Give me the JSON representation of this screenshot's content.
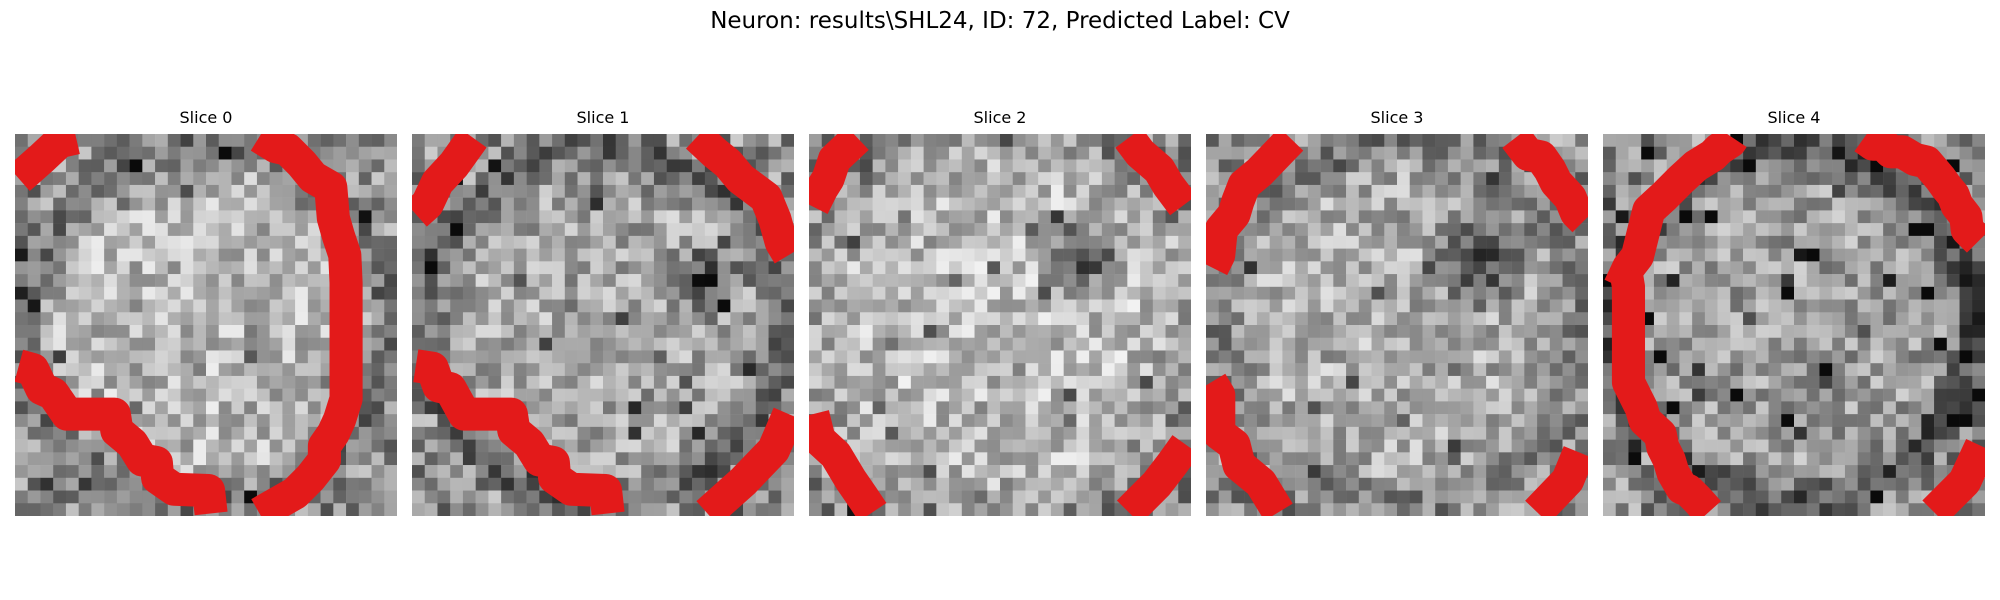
{
  "figure": {
    "title": "Neuron: results\\SHL24, ID: 72, Predicted Label: CV",
    "neuron": "results\\SHL24",
    "id": 72,
    "predicted_label": "CV",
    "contour_color": "#e31a1a",
    "colormap": "gray"
  },
  "slices": [
    {
      "title": "Slice 0",
      "index": 0
    },
    {
      "title": "Slice 1",
      "index": 1
    },
    {
      "title": "Slice 2",
      "index": 2
    },
    {
      "title": "Slice 3",
      "index": 3
    },
    {
      "title": "Slice 4",
      "index": 4
    }
  ]
}
